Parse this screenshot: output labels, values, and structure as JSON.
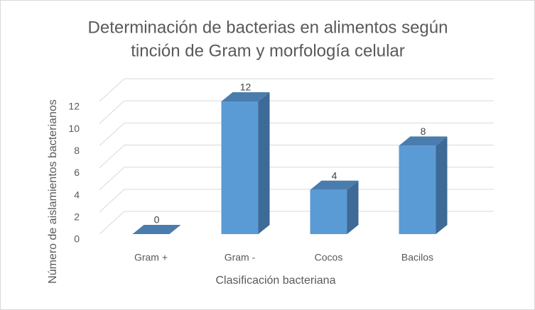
{
  "chart_data": {
    "type": "bar3d",
    "title": [
      "Determinación de bacterias en alimentos según",
      "tinción de Gram y morfología celular"
    ],
    "x_label": "Clasificación  bacteriana",
    "y_label": "Número de aislamientos bacterianos",
    "categories": [
      "Gram +",
      "Gram -",
      "Cocos",
      "Bacilos"
    ],
    "values": [
      0,
      12,
      4,
      8
    ],
    "color": "#5b9bd5",
    "ylim": [
      0,
      12
    ],
    "yticks": [
      0,
      2,
      4,
      6,
      8,
      10,
      12
    ],
    "grid": true
  }
}
